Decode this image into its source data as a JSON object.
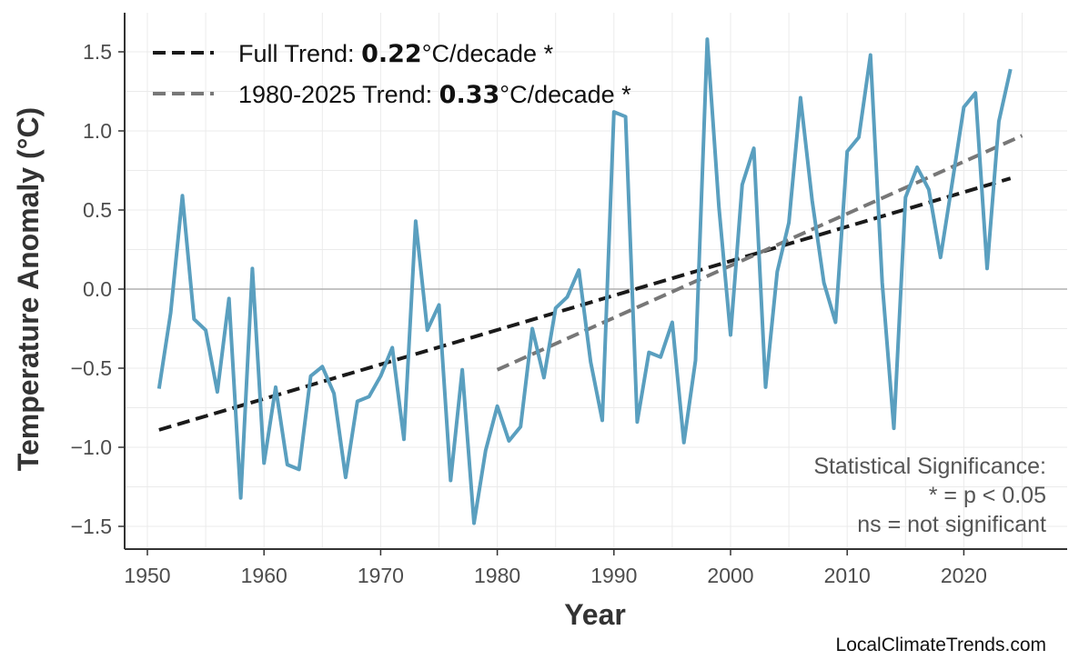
{
  "chart_data": {
    "type": "line",
    "xlabel": "Year",
    "ylabel": "Temperature Anomaly (°C)",
    "xlim": [
      1945,
      2029
    ],
    "ylim": [
      -1.65,
      1.7
    ],
    "xticks": [
      1950,
      1960,
      1970,
      1980,
      1990,
      2000,
      2010,
      2020
    ],
    "yticks": [
      -1.5,
      -1.0,
      -0.5,
      0.0,
      0.5,
      1.0,
      1.5
    ],
    "ytick_labels": [
      "−1.5",
      "−1.0",
      "−0.5",
      "0.0",
      "0.5",
      "1.0",
      "1.5"
    ],
    "grid": true,
    "series_color": "#5a9fbf",
    "x": [
      1951,
      1952,
      1953,
      1954,
      1955,
      1956,
      1957,
      1958,
      1959,
      1960,
      1961,
      1962,
      1963,
      1964,
      1965,
      1966,
      1967,
      1968,
      1969,
      1970,
      1971,
      1972,
      1973,
      1974,
      1975,
      1976,
      1977,
      1978,
      1979,
      1980,
      1981,
      1982,
      1983,
      1984,
      1985,
      1986,
      1987,
      1988,
      1989,
      1990,
      1991,
      1992,
      1993,
      1994,
      1995,
      1996,
      1997,
      1998,
      1999,
      2000,
      2001,
      2002,
      2003,
      2004,
      2005,
      2006,
      2007,
      2008,
      2009,
      2010,
      2011,
      2012,
      2013,
      2014,
      2015,
      2016,
      2017,
      2018,
      2019,
      2020,
      2021,
      2022,
      2023,
      2024
    ],
    "y": [
      -0.63,
      -0.15,
      0.59,
      -0.19,
      -0.26,
      -0.65,
      -0.06,
      -1.32,
      0.13,
      -1.1,
      -0.62,
      -1.11,
      -1.14,
      -0.55,
      -0.49,
      -0.66,
      -1.19,
      -0.71,
      -0.68,
      -0.55,
      -0.37,
      -0.95,
      0.43,
      -0.26,
      -0.1,
      -1.21,
      -0.51,
      -1.48,
      -1.02,
      -0.74,
      -0.96,
      -0.87,
      -0.25,
      -0.56,
      -0.12,
      -0.05,
      0.12,
      -0.46,
      -0.83,
      1.12,
      1.09,
      -0.84,
      -0.4,
      -0.43,
      -0.21,
      -0.97,
      -0.45,
      1.58,
      0.52,
      -0.29,
      0.66,
      0.89,
      -0.62,
      0.11,
      0.42,
      1.21,
      0.56,
      0.04,
      -0.21,
      0.87,
      0.96,
      1.48,
      0.04,
      -0.88,
      0.58,
      0.77,
      0.63,
      0.2,
      0.67,
      1.15,
      1.24,
      0.13,
      1.06,
      1.39
    ],
    "trends": [
      {
        "label_prefix": "Full Trend: ",
        "rate": "0.22",
        "label_suffix": "°C/decade *",
        "x": [
          1951,
          2024
        ],
        "y": [
          -0.89,
          0.7
        ],
        "color": "#1a1a1a"
      },
      {
        "label_prefix": "1980-2025 Trend: ",
        "rate": "0.33",
        "label_suffix": "°C/decade *",
        "x": [
          1980,
          2025
        ],
        "y": [
          -0.51,
          0.97
        ],
        "color": "#777777"
      }
    ],
    "legend_position": "top-left",
    "annotation": [
      "Statistical Significance:",
      "* = p < 0.05",
      "ns = not significant"
    ],
    "watermark": "LocalClimateTrends.com"
  }
}
